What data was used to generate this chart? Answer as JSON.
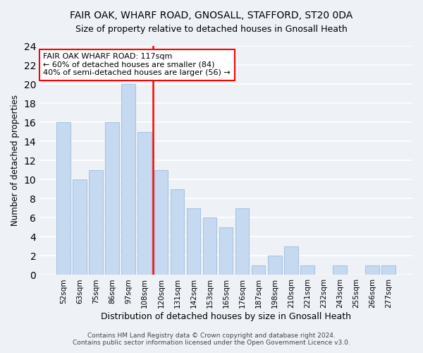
{
  "title1": "FAIR OAK, WHARF ROAD, GNOSALL, STAFFORD, ST20 0DA",
  "title2": "Size of property relative to detached houses in Gnosall Heath",
  "xlabel": "Distribution of detached houses by size in Gnosall Heath",
  "ylabel": "Number of detached properties",
  "bar_labels": [
    "52sqm",
    "63sqm",
    "75sqm",
    "86sqm",
    "97sqm",
    "108sqm",
    "120sqm",
    "131sqm",
    "142sqm",
    "153sqm",
    "165sqm",
    "176sqm",
    "187sqm",
    "198sqm",
    "210sqm",
    "221sqm",
    "232sqm",
    "243sqm",
    "255sqm",
    "266sqm",
    "277sqm"
  ],
  "bar_values": [
    16,
    10,
    11,
    16,
    20,
    15,
    11,
    9,
    7,
    6,
    5,
    7,
    1,
    2,
    3,
    1,
    0,
    1,
    0,
    1,
    1
  ],
  "bar_color": "#c5d9f0",
  "bar_edge_color": "#aac4e0",
  "vline_pos": 5.5,
  "vline_color": "red",
  "annotation_title": "FAIR OAK WHARF ROAD: 117sqm",
  "annotation_line1": "← 60% of detached houses are smaller (84)",
  "annotation_line2": "40% of semi-detached houses are larger (56) →",
  "annotation_box_color": "white",
  "annotation_box_edge": "red",
  "ylim": [
    0,
    24
  ],
  "yticks": [
    0,
    2,
    4,
    6,
    8,
    10,
    12,
    14,
    16,
    18,
    20,
    22,
    24
  ],
  "footnote1": "Contains HM Land Registry data © Crown copyright and database right 2024.",
  "footnote2": "Contains public sector information licensed under the Open Government Licence v3.0.",
  "bg_color": "#eef2f7",
  "plot_bg_color": "#eef2f7"
}
